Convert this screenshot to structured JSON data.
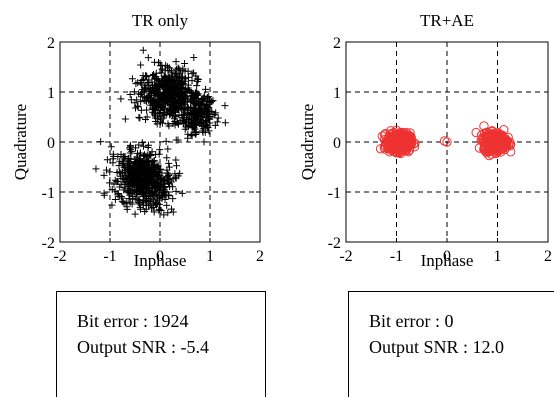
{
  "chart_data": [
    {
      "type": "scatter",
      "title": "TR only",
      "xlabel": "Inphase",
      "ylabel": "Quadrature",
      "xlim": [
        -2,
        2
      ],
      "ylim": [
        -2,
        2
      ],
      "x_ticks": [
        -2,
        -1,
        0,
        1,
        2
      ],
      "y_ticks": [
        -2,
        -1,
        0,
        1,
        2
      ],
      "tick_labels_x": [
        "-2",
        "-1",
        "0",
        "1",
        "2"
      ],
      "tick_labels_y": [
        "-2",
        "-1",
        "0",
        "1",
        "2"
      ],
      "grid": "dashed at -1, 0, 1",
      "marker": "plus",
      "color": "#000000",
      "clusters": [
        {
          "center": [
            0.15,
            0.95
          ],
          "spread": [
            0.55,
            0.55
          ],
          "tilt": -0.75,
          "count": 520
        },
        {
          "center": [
            0.75,
            0.55
          ],
          "spread": [
            0.35,
            0.45
          ],
          "tilt": -0.6,
          "count": 220
        },
        {
          "center": [
            -0.35,
            -0.75
          ],
          "spread": [
            0.6,
            0.5
          ],
          "tilt": -0.7,
          "count": 600
        }
      ]
    },
    {
      "type": "scatter",
      "title": "TR+AE",
      "xlabel": "Inphase",
      "ylabel": "Quadrature",
      "xlim": [
        -2,
        2
      ],
      "ylim": [
        -2,
        2
      ],
      "x_ticks": [
        -2,
        -1,
        0,
        1,
        2
      ],
      "y_ticks": [
        -2,
        -1,
        0,
        1,
        2
      ],
      "tick_labels_x": [
        "-2",
        "-1",
        "0",
        "1",
        "2"
      ],
      "tick_labels_y": [
        "-2",
        "-1",
        "0",
        "1",
        "2"
      ],
      "grid": "dashed at -1, 0, 1",
      "marker": "circle",
      "color": "#ee3333",
      "clusters": [
        {
          "center": [
            -0.95,
            0.0
          ],
          "spread": [
            0.22,
            0.18
          ],
          "tilt": 0,
          "count": 420
        },
        {
          "center": [
            0.95,
            0.0
          ],
          "spread": [
            0.22,
            0.18
          ],
          "tilt": 0,
          "count": 420
        }
      ]
    }
  ],
  "stats": [
    {
      "bit_error": "Bit error : 1924",
      "output_snr": "Output SNR : -5.4"
    },
    {
      "bit_error": "Bit error : 0",
      "output_snr": "Output SNR : 12.0"
    }
  ]
}
